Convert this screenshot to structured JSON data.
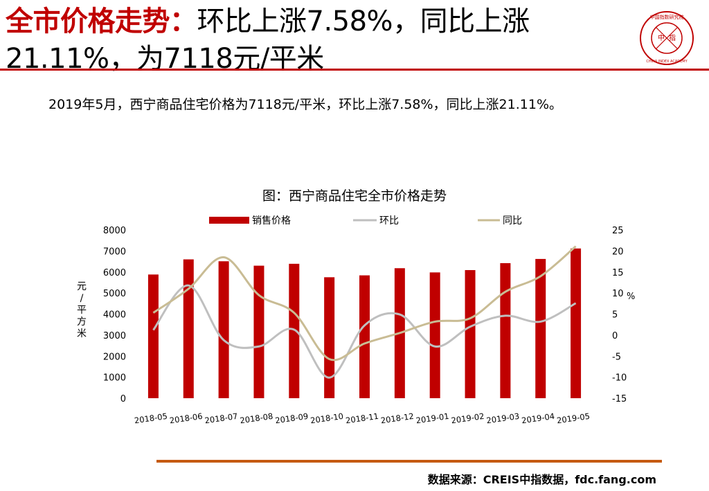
{
  "title": {
    "highlight": "全市价格走势：",
    "rest": "环比上涨7.58%，同比上涨21.11%，为7118元/平米"
  },
  "seal": {
    "text_top": "中国指数研究院",
    "text_bottom": "CHINA INDEX ACADEMY",
    "center_left": "中",
    "center_right": "指"
  },
  "summary": "2019年5月，西宁商品住宅价格为7118元/平米，环比上涨7.58%，同比上涨21.11%。",
  "chart_data": {
    "type": "bar",
    "title": "图：西宁商品住宅全市价格走势",
    "categories": [
      "2018-05",
      "2018-06",
      "2018-07",
      "2018-08",
      "2018-09",
      "2018-10",
      "2018-11",
      "2018-12",
      "2019-01",
      "2019-02",
      "2019-03",
      "2019-04",
      "2019-05"
    ],
    "series": [
      {
        "name": "销售价格",
        "type": "bar",
        "axis": "left",
        "color": "#c00000",
        "values": [
          5880,
          6600,
          6510,
          6300,
          6390,
          5750,
          5840,
          6180,
          5980,
          6090,
          6420,
          6620,
          7118
        ]
      },
      {
        "name": "环比",
        "type": "line",
        "axis": "right",
        "color": "#bfbfbf",
        "values": [
          1.2,
          11.8,
          -1.2,
          -2.7,
          1.3,
          -10.1,
          2.3,
          4.9,
          -2.7,
          2.0,
          4.6,
          3.2,
          7.58
        ]
      },
      {
        "name": "同比",
        "type": "line",
        "axis": "right",
        "color": "#c9bc94",
        "values": [
          5.3,
          11.0,
          18.5,
          9.5,
          5.3,
          -5.7,
          -2.0,
          0.5,
          3.2,
          4.0,
          10.3,
          14.0,
          21.11
        ]
      }
    ],
    "y_left": {
      "label": "元/平方米",
      "ylim": [
        0,
        8000
      ],
      "ticks": [
        0,
        1000,
        2000,
        3000,
        4000,
        5000,
        6000,
        7000,
        8000
      ]
    },
    "y_right": {
      "label": "%",
      "ylim": [
        -15,
        25
      ],
      "ticks": [
        -15,
        -10,
        -5,
        0,
        5,
        10,
        15,
        20,
        25
      ]
    },
    "legend": "top",
    "grid": false
  },
  "source": "数据来源：CREIS中指数据，fdc.fang.com",
  "colors": {
    "accent": "#c00000",
    "rule_bottom": "#c55a11"
  }
}
